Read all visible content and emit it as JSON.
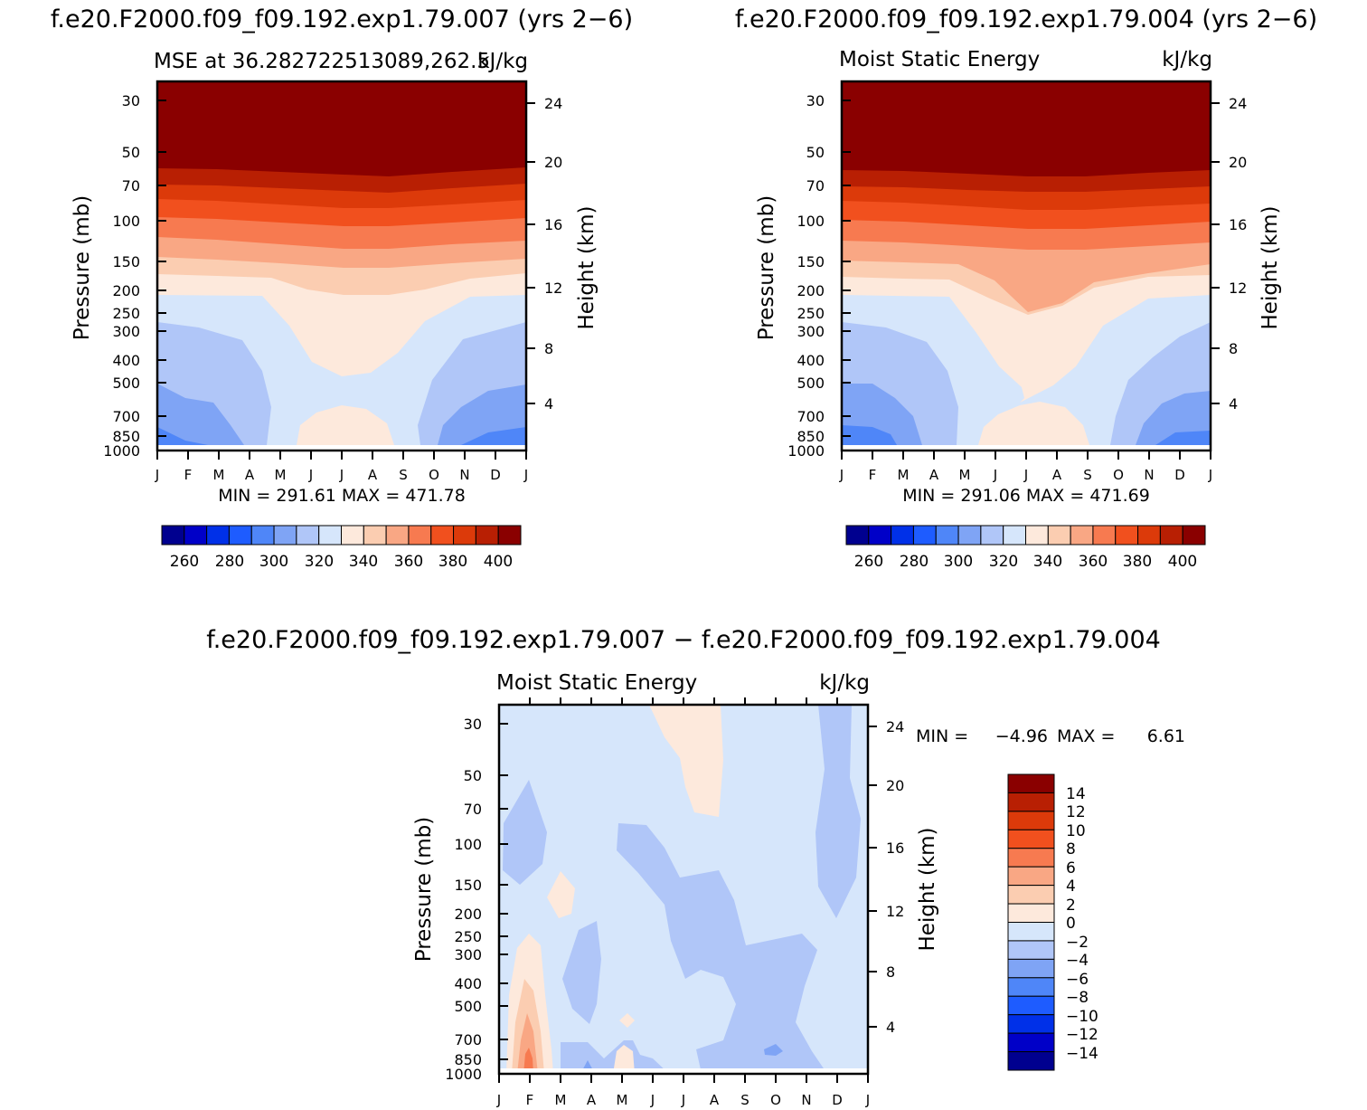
{
  "chart_data": [
    {
      "type": "heatmap",
      "id": "p1",
      "title": "f.e20.F2000.f09_f09.192.exp1.79.007 (yrs 2−6)",
      "subtitle_left": "MSE at 36.282722513089,262.5",
      "subtitle_right": "kJ/kg",
      "ylabel": "Pressure (mb)",
      "ylabel_right": "Height (km)",
      "months": [
        "J",
        "F",
        "M",
        "A",
        "M",
        "J",
        "J",
        "A",
        "S",
        "O",
        "N",
        "D",
        "J"
      ],
      "pressure_ticks": [
        "30",
        "50",
        "70",
        "100",
        "150",
        "200",
        "250",
        "300",
        "400",
        "500",
        "700",
        "850",
        "1000"
      ],
      "height_ticks": [
        "24",
        "20",
        "16",
        "12",
        "8",
        "4"
      ],
      "min_max_text": "MIN = 291.61 MAX = 471.78",
      "levels": [
        250,
        260,
        270,
        280,
        290,
        300,
        310,
        320,
        330,
        340,
        350,
        360,
        370,
        380,
        390,
        400
      ],
      "colorbar_labels": [
        "260",
        "280",
        "300",
        "320",
        "340",
        "360",
        "380",
        "400"
      ],
      "colors": [
        "#00008f",
        "#0000c8",
        "#0030e8",
        "#1e5cff",
        "#4f86f8",
        "#7fa4f5",
        "#b0c6f8",
        "#d6e6fb",
        "#fde9dc",
        "#fbcdb1",
        "#f9a784",
        "#f77a50",
        "#f1501e",
        "#dc3a0a",
        "#b81f03",
        "#8a0000"
      ]
    },
    {
      "type": "heatmap",
      "id": "p2",
      "title": "f.e20.F2000.f09_f09.192.exp1.79.004 (yrs 2−6)",
      "subtitle_left": "Moist Static Energy",
      "subtitle_right": "kJ/kg",
      "ylabel": "Pressure (mb)",
      "ylabel_right": "Height (km)",
      "months": [
        "J",
        "F",
        "M",
        "A",
        "M",
        "J",
        "J",
        "A",
        "S",
        "O",
        "N",
        "D",
        "J"
      ],
      "pressure_ticks": [
        "30",
        "50",
        "70",
        "100",
        "150",
        "200",
        "250",
        "300",
        "400",
        "500",
        "700",
        "850",
        "1000"
      ],
      "height_ticks": [
        "24",
        "20",
        "16",
        "12",
        "8",
        "4"
      ],
      "min_max_text": "MIN = 291.06 MAX = 471.69",
      "colorbar_labels": [
        "260",
        "280",
        "300",
        "320",
        "340",
        "360",
        "380",
        "400"
      ]
    },
    {
      "type": "heatmap",
      "id": "p3",
      "title": "f.e20.F2000.f09_f09.192.exp1.79.007 − f.e20.F2000.f09_f09.192.exp1.79.004",
      "subtitle_left": "Moist Static Energy",
      "subtitle_right": "kJ/kg",
      "ylabel": "Pressure (mb)",
      "ylabel_right": "Height (km)",
      "months": [
        "J",
        "F",
        "M",
        "A",
        "M",
        "J",
        "J",
        "A",
        "S",
        "O",
        "N",
        "D",
        "J"
      ],
      "pressure_ticks": [
        "30",
        "50",
        "70",
        "100",
        "150",
        "200",
        "250",
        "300",
        "400",
        "500",
        "700",
        "850",
        "1000"
      ],
      "height_ticks": [
        "24",
        "20",
        "16",
        "12",
        "8",
        "4"
      ],
      "min_label": "MIN =",
      "min_value": "−4.96",
      "max_label": "MAX =",
      "max_value": "6.61",
      "levels": [
        -14,
        -12,
        -10,
        -8,
        -6,
        -4,
        -2,
        0,
        2,
        4,
        6,
        8,
        10,
        12,
        14
      ],
      "colorbar_labels": [
        "14",
        "12",
        "10",
        "8",
        "6",
        "4",
        "2",
        "0",
        "−2",
        "−4",
        "−6",
        "−8",
        "−10",
        "−12",
        "−14"
      ],
      "colors": [
        "#8a0000",
        "#b81f03",
        "#dc3a0a",
        "#f1501e",
        "#f77a50",
        "#f9a784",
        "#fbcdb1",
        "#fde9dc",
        "#d6e6fb",
        "#b0c6f8",
        "#7fa4f5",
        "#4f86f8",
        "#1e5cff",
        "#0030e8",
        "#0000c8",
        "#00008f"
      ]
    }
  ]
}
